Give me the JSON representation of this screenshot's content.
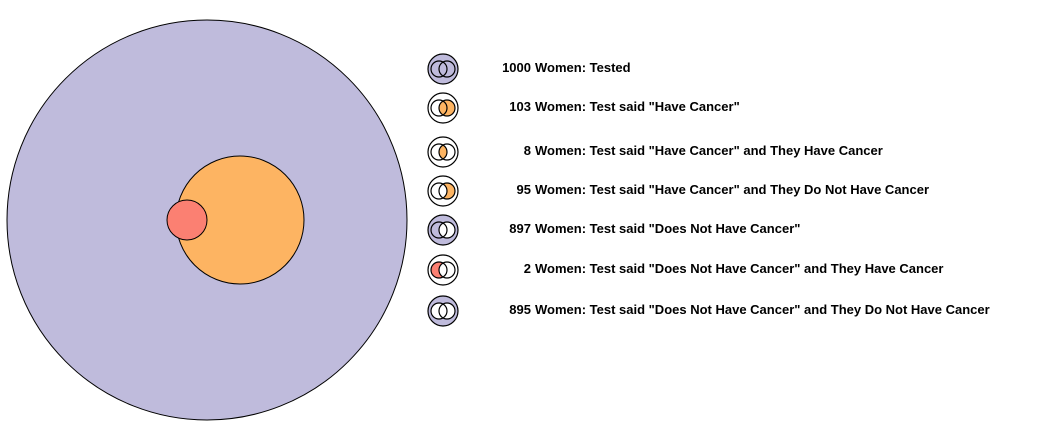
{
  "colors": {
    "population": "#bfbbdc",
    "test_positive": "#fdb462",
    "has_cancer": "#fb8072",
    "stroke": "#000000",
    "empty": "#ffffff"
  },
  "diagram": {
    "population_count": 1000,
    "test_positive_count": 103,
    "has_cancer_count": 10
  },
  "legend": [
    {
      "count": "1000",
      "label": "Women: Tested",
      "icon": "venn-all-icon"
    },
    {
      "count": "103",
      "label": "Women: Test said \"Have Cancer\"",
      "icon": "venn-test-positive-icon"
    },
    {
      "count": "8",
      "label": "Women: Test said \"Have Cancer\" and They Have Cancer",
      "icon": "venn-true-positive-icon"
    },
    {
      "count": "95",
      "label": "Women: Test said \"Have Cancer\" and They Do Not Have Cancer",
      "icon": "venn-false-positive-icon"
    },
    {
      "count": "897",
      "label": "Women: Test said \"Does Not Have Cancer\"",
      "icon": "venn-test-negative-icon"
    },
    {
      "count": "2",
      "label": "Women: Test said \"Does Not Have Cancer\" and They Have Cancer",
      "icon": "venn-false-negative-icon"
    },
    {
      "count": "895",
      "label": "Women: Test said \"Does Not Have Cancer\" and They Do Not Have Cancer",
      "icon": "venn-true-negative-icon"
    }
  ]
}
